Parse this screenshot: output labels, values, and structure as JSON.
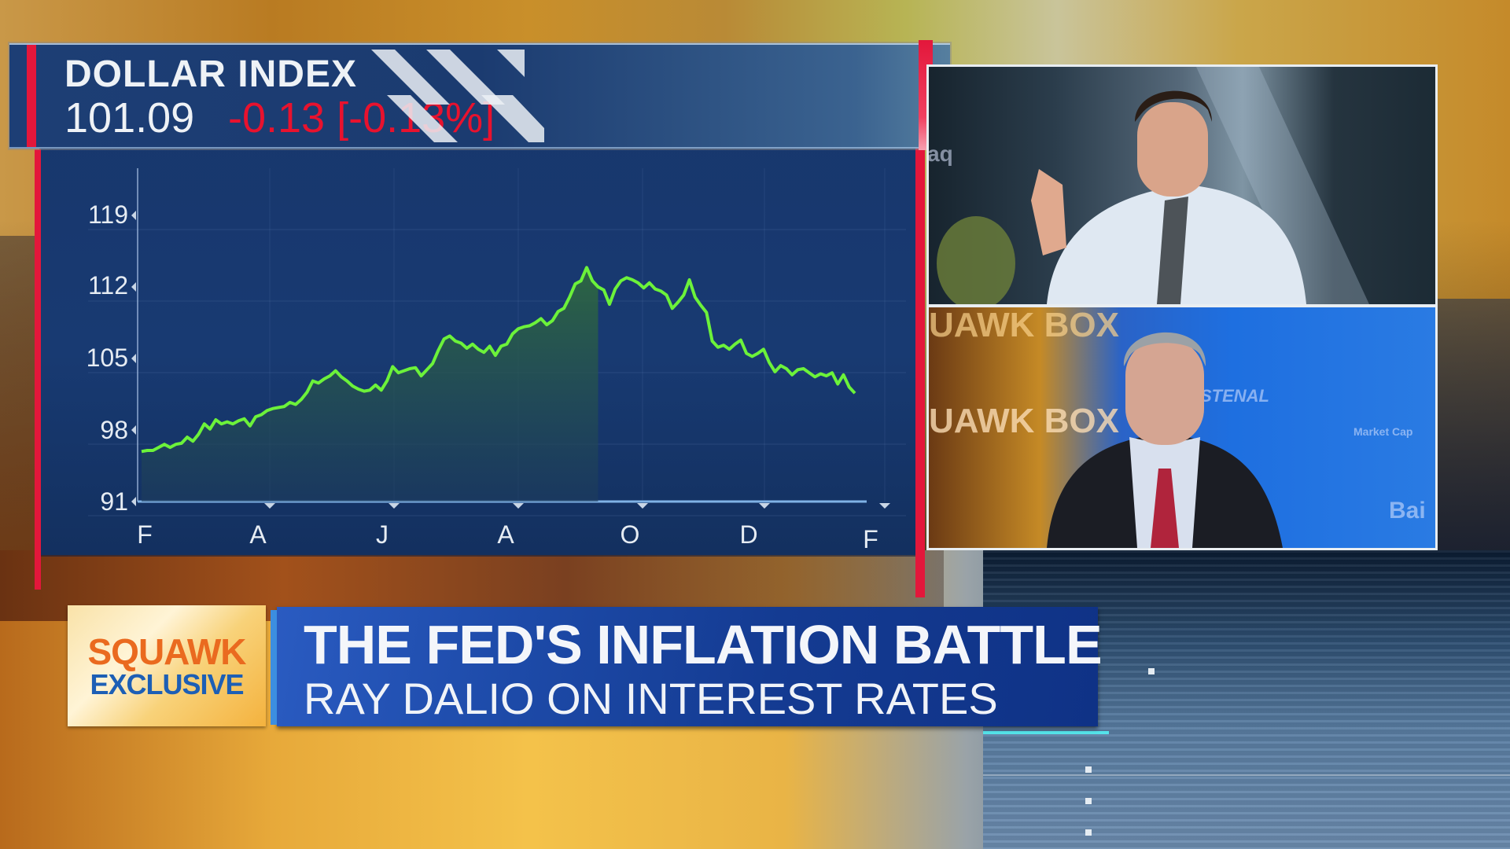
{
  "chart_panel": {
    "index_name": "DOLLAR INDEX",
    "index_value": "101.09",
    "index_change": "-0.13 [-0.13%]",
    "change_color": "#e8122e",
    "line_color": "#6cf23a"
  },
  "chart_data": {
    "type": "line",
    "title": "DOLLAR INDEX",
    "subtitle": "101.09 -0.13 [-0.13%]",
    "xlabel": "",
    "ylabel": "",
    "x_tick_labels": [
      "F",
      "A",
      "J",
      "A",
      "O",
      "D",
      "F"
    ],
    "y_tick_labels": [
      "119",
      "112",
      "105",
      "98",
      "91"
    ],
    "yticks": [
      119,
      112,
      105,
      98,
      91
    ],
    "ylim": [
      91,
      119
    ],
    "grid": true,
    "legend": "none",
    "area_fill": true,
    "series": [
      {
        "name": "Dollar Index",
        "x": [
          0,
          1,
          2,
          3,
          4,
          5,
          6,
          7,
          8,
          9,
          10,
          11,
          12,
          13,
          14,
          15,
          16,
          17,
          18,
          19,
          20,
          21,
          22,
          23,
          24,
          25,
          26,
          27,
          28,
          29,
          30,
          31,
          32,
          33,
          34,
          35,
          36,
          37,
          38,
          39,
          40,
          41,
          42,
          43,
          44,
          45,
          46,
          47,
          48,
          49,
          50,
          51,
          52,
          53,
          54,
          55,
          56,
          57,
          58,
          59,
          60,
          61,
          62,
          63,
          64,
          65,
          66,
          67,
          68,
          69,
          70,
          71,
          72,
          73,
          74,
          75,
          76,
          77,
          78,
          79,
          80,
          81,
          82,
          83,
          84,
          85,
          86,
          87,
          88,
          89,
          90,
          91,
          92,
          93,
          94,
          95,
          96,
          97,
          98,
          99,
          100,
          101,
          102,
          103,
          104,
          105,
          106,
          107,
          108,
          109,
          110,
          111,
          112,
          113,
          114,
          115,
          116,
          117,
          118,
          119,
          120,
          121,
          122,
          123,
          124,
          125
        ],
        "values": [
          95.9,
          96.0,
          96.0,
          96.3,
          96.6,
          96.3,
          96.6,
          96.7,
          97.3,
          96.9,
          97.6,
          98.6,
          98.1,
          99.0,
          98.6,
          98.8,
          98.6,
          98.9,
          99.1,
          98.4,
          99.3,
          99.5,
          99.9,
          100.1,
          100.2,
          100.3,
          100.7,
          100.5,
          101.0,
          101.7,
          102.8,
          102.6,
          103.0,
          103.3,
          103.8,
          103.2,
          102.8,
          102.3,
          102.0,
          101.8,
          101.9,
          102.4,
          101.9,
          102.8,
          104.2,
          103.6,
          103.8,
          104.0,
          104.1,
          103.3,
          103.9,
          104.5,
          105.8,
          106.9,
          107.2,
          106.7,
          106.5,
          106.0,
          106.4,
          105.9,
          105.6,
          106.2,
          105.3,
          106.2,
          106.4,
          107.4,
          107.9,
          108.1,
          108.2,
          108.5,
          108.9,
          108.3,
          108.7,
          109.6,
          109.9,
          111.0,
          112.3,
          112.6,
          113.9,
          112.6,
          112.0,
          111.7,
          110.3,
          111.8,
          112.6,
          112.9,
          112.7,
          112.4,
          111.9,
          112.4,
          111.8,
          111.6,
          111.2,
          109.9,
          110.5,
          111.2,
          112.7,
          111.0,
          110.2,
          109.5,
          106.7,
          106.1,
          106.3,
          105.9,
          106.4,
          106.8,
          105.5,
          105.2,
          105.5,
          105.9,
          104.6,
          103.7,
          104.3,
          104.0,
          103.4,
          103.9,
          104.0,
          103.6,
          103.2,
          103.5,
          103.3,
          103.6,
          102.5,
          103.4,
          102.2,
          101.6
        ]
      }
    ],
    "highlight_region": {
      "from_index": 76,
      "to_index": 80,
      "note": "darker shaded vertical band near Sept"
    }
  },
  "video_panels": {
    "top": {
      "studio_text": "aq",
      "description": "Anchor in white shirt and striped tie"
    },
    "bottom": {
      "studio_text_left": "UAWK BOX",
      "studio_text_right_1": "STENAL",
      "studio_text_right_2": "Market Cap",
      "studio_text_right_3": "Bai",
      "description": "Guest in dark suit and red tie"
    }
  },
  "lower_third": {
    "badge_line1": "SQUAWK",
    "badge_line2": "EXCLUSIVE",
    "headline": "THE FED'S INFLATION BATTLE",
    "subheadline": "RAY DALIO ON INTEREST RATES"
  },
  "colors": {
    "panel_blue": "#183a72",
    "accent_red": "#e3173b",
    "headline_blue": "#1d4aa8",
    "badge_orange": "#ea6a1f",
    "badge_blue": "#1d5fb5"
  }
}
